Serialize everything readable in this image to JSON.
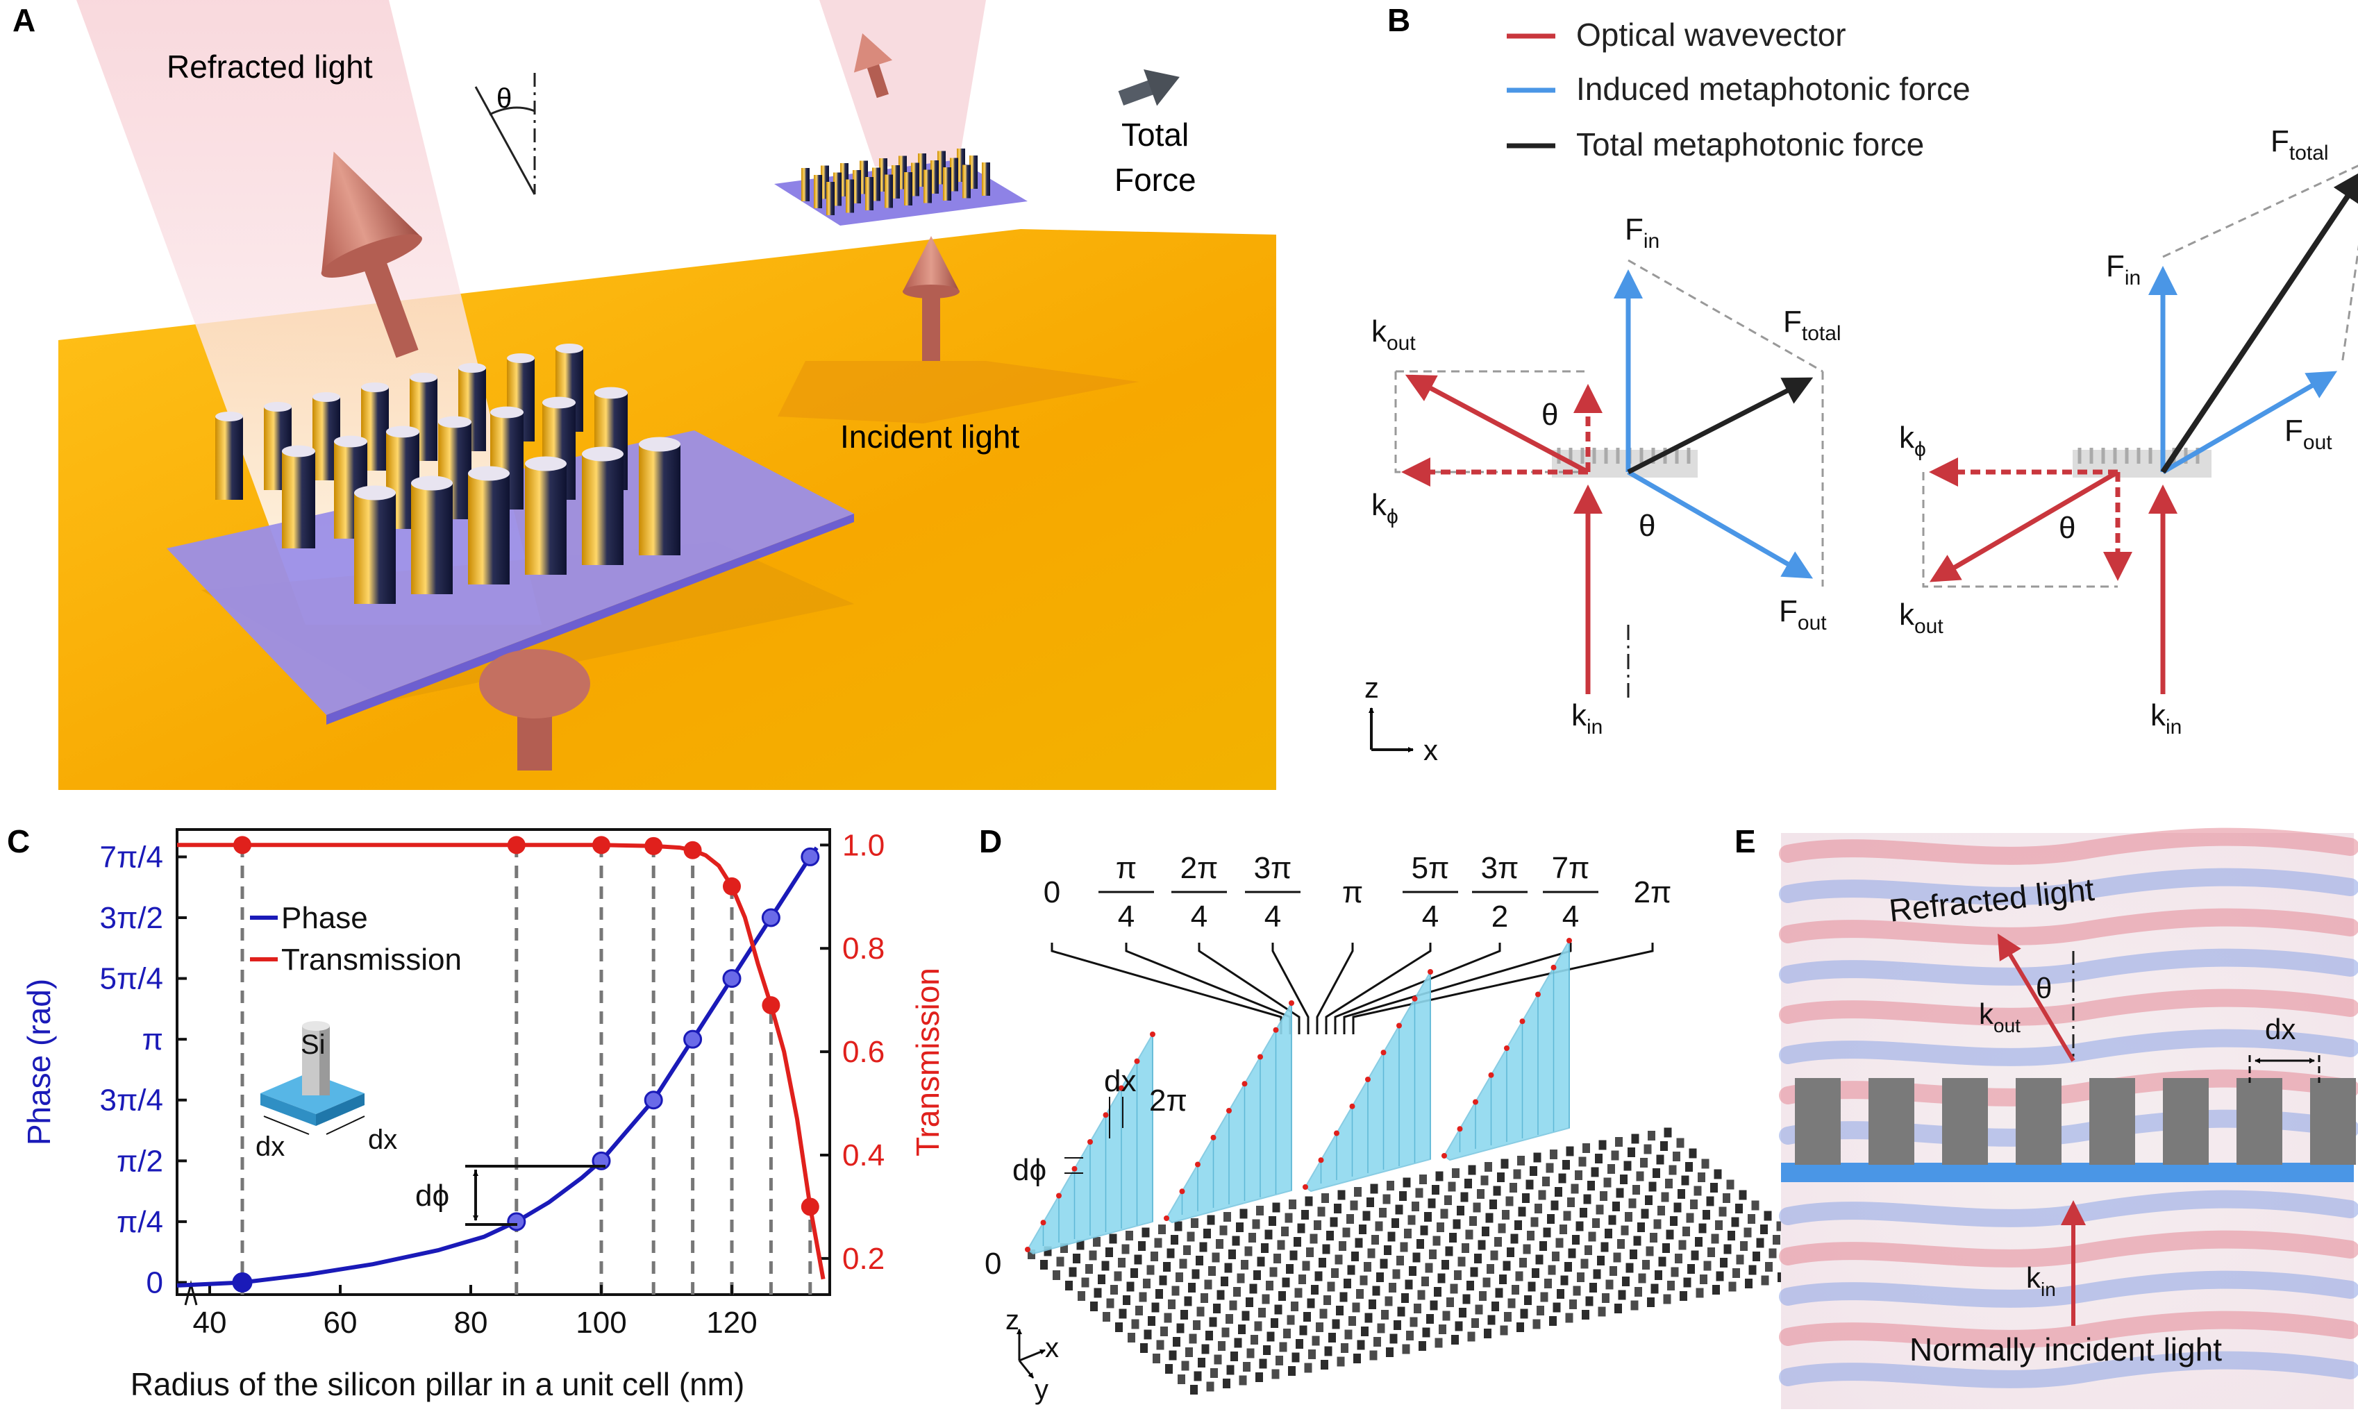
{
  "colors": {
    "optical": "#c9363d",
    "induced": "#4a96e6",
    "total": "#222222",
    "phase": "#1a1ab8",
    "transmission": "#e0201c",
    "gold": "#f7b500",
    "metasurface": "#9b8ee8",
    "cone": "#d98a7c",
    "wedge": "#8fd9ef"
  },
  "panelA": {
    "label": "A",
    "refracted": "Refracted light",
    "theta": "θ",
    "total_line1": "Total",
    "total_line2": "Force",
    "incident": "Incident light"
  },
  "panelB": {
    "label": "B",
    "legend": [
      "Optical wavevector",
      "Induced metaphotonic force",
      "Total metaphotonic force"
    ],
    "k": "k",
    "F": "F",
    "sub_in": "in",
    "sub_out": "out",
    "sub_total": "total",
    "sub_phi": "ϕ",
    "theta": "θ",
    "axis_z": "z",
    "axis_x": "x"
  },
  "panelC": {
    "label": "C",
    "dphi": "dϕ",
    "si": "Si",
    "dx": "dx"
  },
  "panelD": {
    "label": "D",
    "phase_labels": [
      {
        "num": "0",
        "den": ""
      },
      {
        "num": "π",
        "den": "4"
      },
      {
        "num": "2π",
        "den": "4"
      },
      {
        "num": "3π",
        "den": "4"
      },
      {
        "num": "π",
        "den": ""
      },
      {
        "num": "5π",
        "den": "4"
      },
      {
        "num": "3π",
        "den": "2"
      },
      {
        "num": "7π",
        "den": "4"
      },
      {
        "num": "2π",
        "den": ""
      }
    ],
    "dx": "dx",
    "two_pi": "2π",
    "dphi": "dϕ",
    "zero": "0",
    "axis_z": "z",
    "axis_x": "x",
    "axis_y": "y"
  },
  "panelE": {
    "label": "E",
    "refracted": "Refracted light",
    "k": "k",
    "sub_out": "out",
    "sub_in": "in",
    "theta": "θ",
    "dx": "dx",
    "normal": "Normally incident light"
  },
  "chart_data": {
    "type": "line",
    "xlabel": "Radius of the silicon pillar in a unit cell (nm)",
    "ylabel_left": "Phase (rad)",
    "ylabel_right": "Transmission",
    "xlim": [
      35,
      135
    ],
    "xticks": [
      "40",
      "60",
      "80",
      "100",
      "120"
    ],
    "xtick_values": [
      40,
      60,
      80,
      100,
      120
    ],
    "yticks_left": [
      "0",
      "π/4",
      "π/2",
      "3π/4",
      "π",
      "5π/4",
      "3π/2",
      "7π/4"
    ],
    "yticks_right": [
      "0.2",
      "0.4",
      "0.6",
      "0.8",
      "1.0"
    ],
    "ytick_right_values": [
      0.2,
      0.4,
      0.6,
      0.8,
      1.0
    ],
    "ylim_right": [
      0.13,
      1.03
    ],
    "grid": false,
    "legend_position": "top-left",
    "series": [
      {
        "name": "Phase",
        "axis": "left",
        "unit": "π/4",
        "x": [
          35,
          45,
          55,
          65,
          75,
          82,
          87,
          92,
          97,
          100,
          104,
          108,
          111,
          114,
          117,
          120,
          123,
          126,
          129,
          132,
          133
        ],
        "y": [
          -0.05,
          0,
          0.13,
          0.3,
          0.53,
          0.75,
          1.0,
          1.32,
          1.72,
          2.0,
          2.5,
          3.0,
          3.5,
          4.0,
          4.5,
          5.0,
          5.5,
          6.0,
          6.5,
          7.0,
          7.15
        ]
      },
      {
        "name": "Transmission",
        "axis": "right",
        "x": [
          35,
          45,
          87,
          100,
          108,
          112,
          114,
          116,
          118,
          120,
          122,
          124,
          126,
          128,
          130,
          132,
          134
        ],
        "y": [
          1.0,
          1.0,
          1.0,
          1.0,
          0.998,
          0.995,
          0.99,
          0.98,
          0.96,
          0.92,
          0.86,
          0.77,
          0.69,
          0.6,
          0.47,
          0.3,
          0.16
        ]
      }
    ],
    "markers": {
      "phase_x": [
        45,
        87,
        100,
        108,
        114,
        120,
        126,
        132
      ],
      "phase_y": [
        0,
        1,
        2,
        3,
        4,
        5,
        6,
        7
      ],
      "transmission_x": [
        45,
        87,
        100,
        108,
        114,
        120,
        126,
        132
      ],
      "transmission_y": [
        1.0,
        1.0,
        1.0,
        0.998,
        0.99,
        0.92,
        0.69,
        0.3
      ]
    }
  }
}
